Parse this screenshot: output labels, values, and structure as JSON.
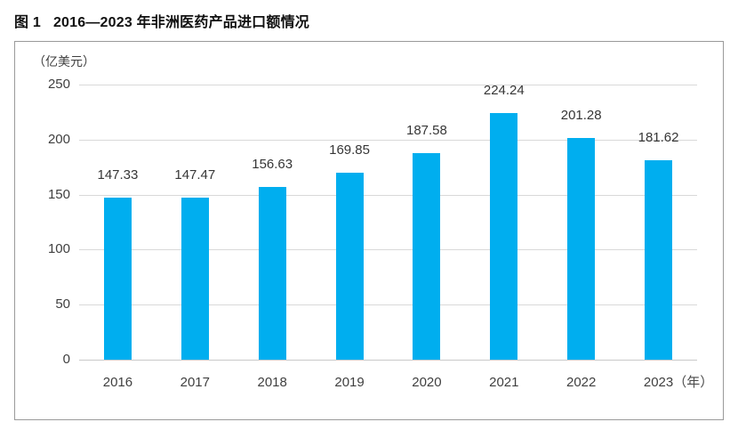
{
  "figure": {
    "label": "图 1",
    "title": "2016—2023 年非洲医药产品进口额情况"
  },
  "chart_data": {
    "type": "bar",
    "title": "2016—2023 年非洲医药产品进口额情况",
    "unit_label": "（亿美元）",
    "categories": [
      "2016",
      "2017",
      "2018",
      "2019",
      "2020",
      "2021",
      "2022",
      "2023"
    ],
    "values": [
      147.33,
      147.47,
      156.63,
      169.85,
      187.58,
      224.24,
      201.28,
      181.62
    ],
    "data_labels": [
      "147.33",
      "147.47",
      "156.63",
      "169.85",
      "187.58",
      "224.24",
      "201.28",
      "181.62"
    ],
    "x_axis_suffix": "（年）",
    "xlabel": "",
    "ylabel": "（亿美元）",
    "ylim": [
      0,
      250
    ],
    "yticks": [
      0,
      50,
      100,
      150,
      200,
      250
    ],
    "grid": true,
    "legend": false,
    "bar_color": "#00AEEF",
    "gridline_color": "#d9d9d9",
    "text_color": "#3f3f3f"
  }
}
